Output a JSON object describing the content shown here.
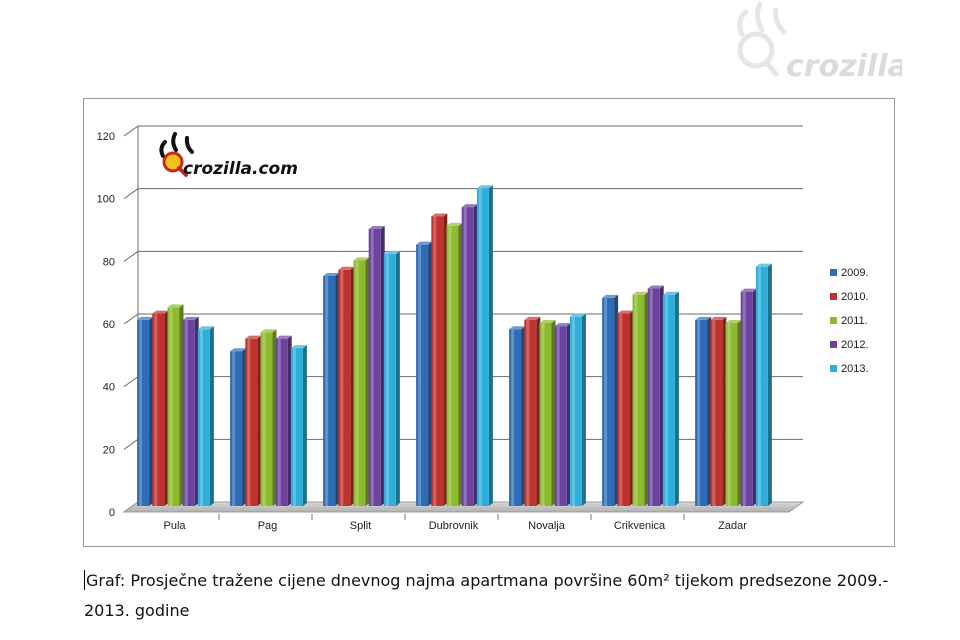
{
  "watermark": {
    "text": "crozilla"
  },
  "chart_logo": {
    "text": "crozilla.com"
  },
  "caption": {
    "line1": "Graf:  Prosječne tražene cijene dnevnog najma apartmana površine 60m² tijekom predsezone 2009.-",
    "line2": "2013. godine"
  },
  "chart_data": {
    "type": "bar",
    "title": "",
    "xlabel": "",
    "ylabel": "",
    "ylim": [
      0,
      120
    ],
    "yticks": [
      0,
      20,
      40,
      60,
      80,
      100,
      120
    ],
    "grid": true,
    "legend_position": "right",
    "categories": [
      "Pula",
      "Pag",
      "Split",
      "Dubrovnik",
      "Novalja",
      "Crikvenica",
      "Zadar"
    ],
    "series": [
      {
        "name": "2009.",
        "color": "#2e6db5",
        "values": [
          61,
          51,
          75,
          85,
          58,
          68,
          61
        ]
      },
      {
        "name": "2010.",
        "color": "#c0322e",
        "values": [
          63,
          55,
          77,
          94,
          61,
          63,
          61
        ]
      },
      {
        "name": "2011.",
        "color": "#8dbb2f",
        "values": [
          65,
          57,
          80,
          91,
          60,
          69,
          60
        ]
      },
      {
        "name": "2012.",
        "color": "#6c44a0",
        "values": [
          61,
          55,
          90,
          97,
          59,
          71,
          70
        ]
      },
      {
        "name": "2013.",
        "color": "#2eaed9",
        "values": [
          58,
          52,
          82,
          103,
          62,
          69,
          78
        ]
      }
    ]
  }
}
